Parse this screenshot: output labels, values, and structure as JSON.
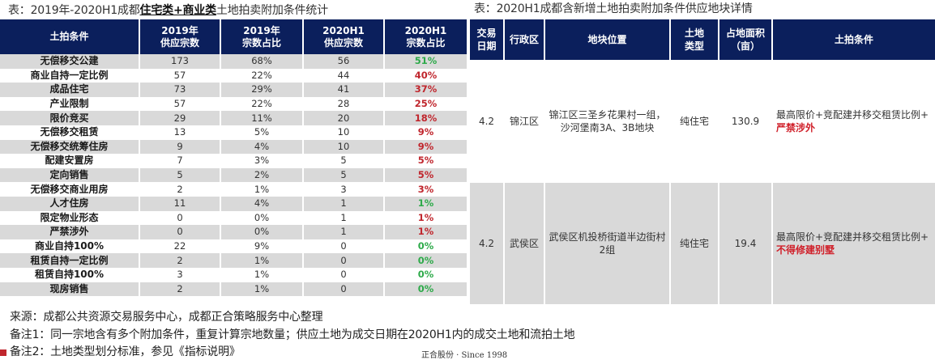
{
  "left_table": {
    "caption_prefix": "表：2019年-2020H1成都",
    "caption_emph": "住宅类+商业类",
    "caption_suffix": "土地拍卖附加条件统计",
    "headers": [
      {
        "line1": "土拍条件",
        "line2": ""
      },
      {
        "line1": "2019年",
        "line2": "供应宗数"
      },
      {
        "line1": "2019年",
        "line2": "宗数占比"
      },
      {
        "line1": "2020H1",
        "line2": "供应宗数"
      },
      {
        "line1": "2020H1",
        "line2": "宗数占比"
      }
    ],
    "rows": [
      {
        "condition": "无偿移交公建",
        "y2019_count": "173",
        "y2019_pct": "68%",
        "h2020_count": "56",
        "h2020_pct": "51%",
        "pct_color": "green"
      },
      {
        "condition": "商业自持一定比例",
        "y2019_count": "57",
        "y2019_pct": "22%",
        "h2020_count": "44",
        "h2020_pct": "40%",
        "pct_color": "red"
      },
      {
        "condition": "成品住宅",
        "y2019_count": "73",
        "y2019_pct": "29%",
        "h2020_count": "41",
        "h2020_pct": "37%",
        "pct_color": "red"
      },
      {
        "condition": "产业限制",
        "y2019_count": "57",
        "y2019_pct": "22%",
        "h2020_count": "28",
        "h2020_pct": "25%",
        "pct_color": "red"
      },
      {
        "condition": "限价竞买",
        "y2019_count": "29",
        "y2019_pct": "11%",
        "h2020_count": "20",
        "h2020_pct": "18%",
        "pct_color": "red"
      },
      {
        "condition": "无偿移交租赁",
        "y2019_count": "13",
        "y2019_pct": "5%",
        "h2020_count": "10",
        "h2020_pct": "9%",
        "pct_color": "red"
      },
      {
        "condition": "无偿移交统筹住房",
        "y2019_count": "9",
        "y2019_pct": "4%",
        "h2020_count": "10",
        "h2020_pct": "9%",
        "pct_color": "red"
      },
      {
        "condition": "配建安置房",
        "y2019_count": "7",
        "y2019_pct": "3%",
        "h2020_count": "5",
        "h2020_pct": "5%",
        "pct_color": "red"
      },
      {
        "condition": "定向销售",
        "y2019_count": "5",
        "y2019_pct": "2%",
        "h2020_count": "5",
        "h2020_pct": "5%",
        "pct_color": "red"
      },
      {
        "condition": "无偿移交商业用房",
        "y2019_count": "2",
        "y2019_pct": "1%",
        "h2020_count": "3",
        "h2020_pct": "3%",
        "pct_color": "red"
      },
      {
        "condition": "人才住房",
        "y2019_count": "11",
        "y2019_pct": "4%",
        "h2020_count": "1",
        "h2020_pct": "1%",
        "pct_color": "green"
      },
      {
        "condition": "限定物业形态",
        "y2019_count": "0",
        "y2019_pct": "0%",
        "h2020_count": "1",
        "h2020_pct": "1%",
        "pct_color": "red"
      },
      {
        "condition": "严禁涉外",
        "y2019_count": "0",
        "y2019_pct": "0%",
        "h2020_count": "1",
        "h2020_pct": "1%",
        "pct_color": "red"
      },
      {
        "condition": "商业自持100%",
        "y2019_count": "22",
        "y2019_pct": "9%",
        "h2020_count": "0",
        "h2020_pct": "0%",
        "pct_color": "green"
      },
      {
        "condition": "租赁自持一定比例",
        "y2019_count": "2",
        "y2019_pct": "1%",
        "h2020_count": "0",
        "h2020_pct": "0%",
        "pct_color": "green"
      },
      {
        "condition": "租赁自持100%",
        "y2019_count": "3",
        "y2019_pct": "1%",
        "h2020_count": "0",
        "h2020_pct": "0%",
        "pct_color": "green"
      },
      {
        "condition": "现房销售",
        "y2019_count": "2",
        "y2019_pct": "1%",
        "h2020_count": "0",
        "h2020_pct": "0%",
        "pct_color": "green"
      }
    ]
  },
  "right_table": {
    "caption": "表：2020H1成都含新增土地拍卖附加条件供应地块详情",
    "headers": [
      {
        "line1": "交易",
        "line2": "日期"
      },
      {
        "line1": "行政区",
        "line2": ""
      },
      {
        "line1": "地块位置",
        "line2": ""
      },
      {
        "line1": "土地",
        "line2": "类型"
      },
      {
        "line1": "占地面积",
        "line2": "（亩）"
      },
      {
        "line1": "土拍条件",
        "line2": ""
      }
    ],
    "rows": [
      {
        "date": "4.2",
        "district": "锦江区",
        "location_line1": "锦江区三圣乡花果村一组，",
        "location_line2": "沙河堡南3A、3B地块",
        "land_type": "纯住宅",
        "area": "130.9",
        "conditions_normal": "最高限价+竞配建并移交租赁比例+",
        "conditions_highlight": "严禁涉外"
      },
      {
        "date": "4.2",
        "district": "武侯区",
        "location_line1": "武侯区机投桥街道半边街村",
        "location_line2": "2组",
        "land_type": "纯住宅",
        "area": "19.4",
        "conditions_normal": "最高限价+竞配建并移交租赁比例+",
        "conditions_highlight": "不得修建别墅"
      }
    ]
  },
  "notes": {
    "source": "来源：成都公共资源交易服务中心，成都正合策略服务中心整理",
    "note1": "备注1：同一宗地含有多个附加条件，重复计算宗地数量；供应土地为成交日期在2020H1内的成交土地和流拍土地",
    "note2": "备注2：土地类型划分标准，参见《指标说明》"
  },
  "footer": {
    "brand": "正合股份 · Since 1998"
  },
  "colors": {
    "header_bg": "#0b1f5c",
    "stripe": "#d9d9d9",
    "red": "#c0262d",
    "green": "#2eaa4a"
  }
}
